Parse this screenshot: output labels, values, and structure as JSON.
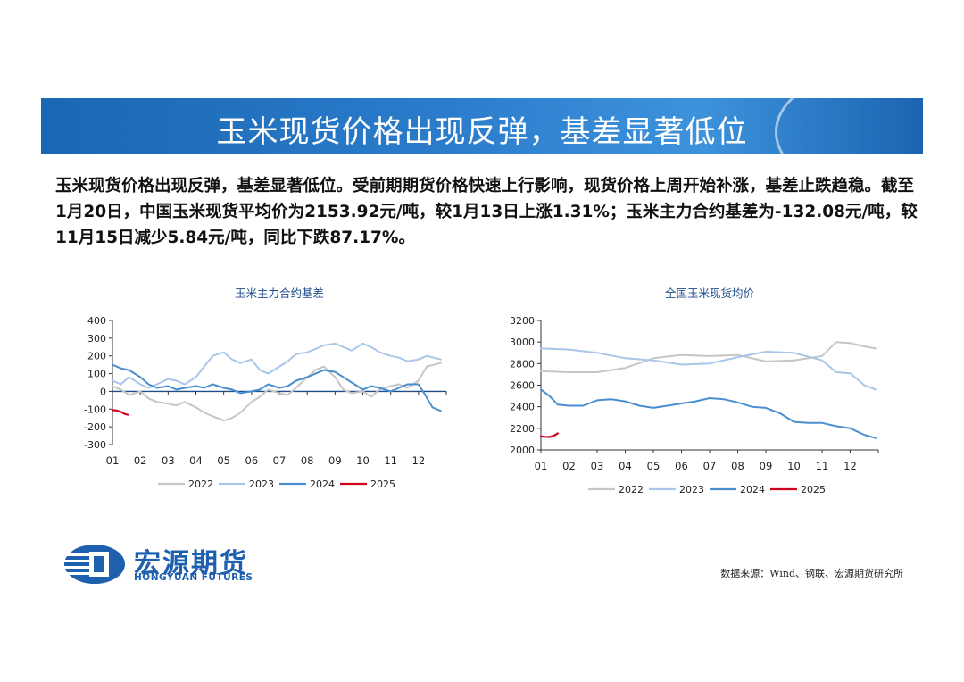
{
  "banner": {
    "title": "玉米现货价格出现反弹，基差显著低位"
  },
  "summary": "玉米现货价格出现反弹，基差显著低位。受前期期货价格快速上行影响，现货价格上周开始补涨，基差止跌趋稳。截至1月20日，中国玉米现货平均价为2153.92元/吨，较1月13日上涨1.31%；玉米主力合约基差为-132.08元/吨，较11月15日减少5.84元/吨，同比下跌87.17%。",
  "footer": {
    "logo_cn": "宏源期货",
    "logo_en": "HONGYUAN FUTURES",
    "source": "数据来源：Wind、钢联、宏源期货研究所"
  },
  "colors": {
    "s2022": "#c6c6c6",
    "s2023": "#a9c6e8",
    "s2024": "#4b8ed0",
    "s2025": "#d0021b",
    "banner": "#2a7ccb"
  },
  "chart_data": [
    {
      "type": "line",
      "title": "玉米主力合约基差",
      "x_tick_labels": [
        "01",
        "02",
        "03",
        "04",
        "05",
        "06",
        "07",
        "08",
        "09",
        "10",
        "11",
        "12"
      ],
      "ylim": [
        -300,
        400
      ],
      "yticks": [
        400,
        300,
        200,
        100,
        0,
        -100,
        -200,
        -300
      ],
      "legend_position": "bottom",
      "grid": false,
      "series": [
        {
          "name": "2022",
          "color": "#c6c6c6",
          "x": [
            1,
            1.3,
            1.6,
            2,
            2.3,
            2.6,
            3,
            3.3,
            3.6,
            4,
            4.3,
            4.6,
            5,
            5.3,
            5.6,
            6,
            6.3,
            6.6,
            7,
            7.3,
            7.6,
            8,
            8.3,
            8.6,
            9,
            9.3,
            9.6,
            10,
            10.3,
            10.6,
            11,
            11.3,
            11.6,
            12,
            12.3,
            12.8
          ],
          "y": [
            30,
            10,
            -20,
            0,
            -40,
            -60,
            -70,
            -80,
            -60,
            -90,
            -120,
            -140,
            -165,
            -150,
            -120,
            -60,
            -30,
            10,
            -10,
            -20,
            20,
            80,
            120,
            140,
            80,
            10,
            -10,
            0,
            -30,
            10,
            30,
            40,
            20,
            60,
            140,
            160
          ]
        },
        {
          "name": "2023",
          "color": "#a9c6e8",
          "x": [
            1,
            1.3,
            1.6,
            2,
            2.3,
            2.6,
            3,
            3.3,
            3.6,
            4,
            4.3,
            4.6,
            5,
            5.3,
            5.6,
            6,
            6.3,
            6.6,
            7,
            7.3,
            7.6,
            8,
            8.3,
            8.6,
            9,
            9.3,
            9.6,
            10,
            10.3,
            10.6,
            11,
            11.3,
            11.6,
            12,
            12.3,
            12.8
          ],
          "y": [
            60,
            40,
            80,
            40,
            20,
            40,
            70,
            60,
            40,
            80,
            140,
            200,
            220,
            180,
            160,
            180,
            120,
            100,
            140,
            170,
            210,
            220,
            240,
            260,
            270,
            250,
            230,
            270,
            250,
            220,
            200,
            190,
            170,
            180,
            200,
            180
          ]
        },
        {
          "name": "2024",
          "color": "#4b8ed0",
          "x": [
            1,
            1.3,
            1.6,
            2,
            2.3,
            2.6,
            3,
            3.3,
            3.6,
            4,
            4.3,
            4.6,
            5,
            5.3,
            5.6,
            6,
            6.3,
            6.6,
            7,
            7.3,
            7.6,
            8,
            8.3,
            8.6,
            9,
            9.3,
            9.6,
            10,
            10.3,
            10.6,
            11,
            11.3,
            11.6,
            12,
            12.2,
            12.5,
            12.8
          ],
          "y": [
            150,
            130,
            120,
            80,
            40,
            20,
            30,
            10,
            20,
            30,
            20,
            40,
            20,
            10,
            -10,
            0,
            10,
            40,
            20,
            30,
            60,
            80,
            100,
            120,
            110,
            80,
            50,
            10,
            30,
            20,
            0,
            20,
            40,
            40,
            -10,
            -90,
            -110
          ]
        },
        {
          "name": "2025",
          "color": "#d0021b",
          "x": [
            1,
            1.15,
            1.3,
            1.45,
            1.55
          ],
          "y": [
            -105,
            -108,
            -115,
            -128,
            -132
          ]
        }
      ]
    },
    {
      "type": "line",
      "title": "全国玉米现货均价",
      "x_tick_labels": [
        "01",
        "02",
        "03",
        "04",
        "05",
        "06",
        "07",
        "08",
        "09",
        "10",
        "11",
        "12"
      ],
      "ylim": [
        2000,
        3200
      ],
      "yticks": [
        3200,
        3000,
        2800,
        2600,
        2400,
        2200,
        2000
      ],
      "legend_position": "bottom",
      "grid": false,
      "series": [
        {
          "name": "2022",
          "color": "#c6c6c6",
          "x": [
            1,
            2,
            3,
            4,
            5,
            6,
            7,
            8,
            9,
            10,
            11,
            11.5,
            12,
            12.5,
            12.9
          ],
          "y": [
            2730,
            2720,
            2720,
            2760,
            2850,
            2880,
            2870,
            2880,
            2820,
            2830,
            2870,
            3000,
            2990,
            2960,
            2940
          ]
        },
        {
          "name": "2023",
          "color": "#a9c6e8",
          "x": [
            1,
            2,
            3,
            4,
            5,
            6,
            7,
            8,
            9,
            10,
            11,
            11.5,
            12,
            12.5,
            12.9
          ],
          "y": [
            2940,
            2930,
            2900,
            2850,
            2830,
            2790,
            2800,
            2860,
            2910,
            2900,
            2830,
            2720,
            2710,
            2600,
            2560
          ]
        },
        {
          "name": "2024",
          "color": "#4b8ed0",
          "x": [
            1,
            1.3,
            1.6,
            2,
            2.5,
            3,
            3.5,
            4,
            4.5,
            5,
            5.5,
            6,
            6.5,
            7,
            7.5,
            8,
            8.5,
            9,
            9.5,
            10,
            10.5,
            11,
            11.5,
            12,
            12.5,
            12.9
          ],
          "y": [
            2560,
            2500,
            2420,
            2410,
            2410,
            2460,
            2470,
            2450,
            2410,
            2390,
            2410,
            2430,
            2450,
            2480,
            2470,
            2440,
            2400,
            2390,
            2340,
            2260,
            2250,
            2250,
            2220,
            2200,
            2140,
            2110
          ]
        },
        {
          "name": "2025",
          "color": "#d0021b",
          "x": [
            1,
            1.15,
            1.3,
            1.45,
            1.6
          ],
          "y": [
            2125,
            2122,
            2120,
            2130,
            2154
          ]
        }
      ]
    }
  ]
}
